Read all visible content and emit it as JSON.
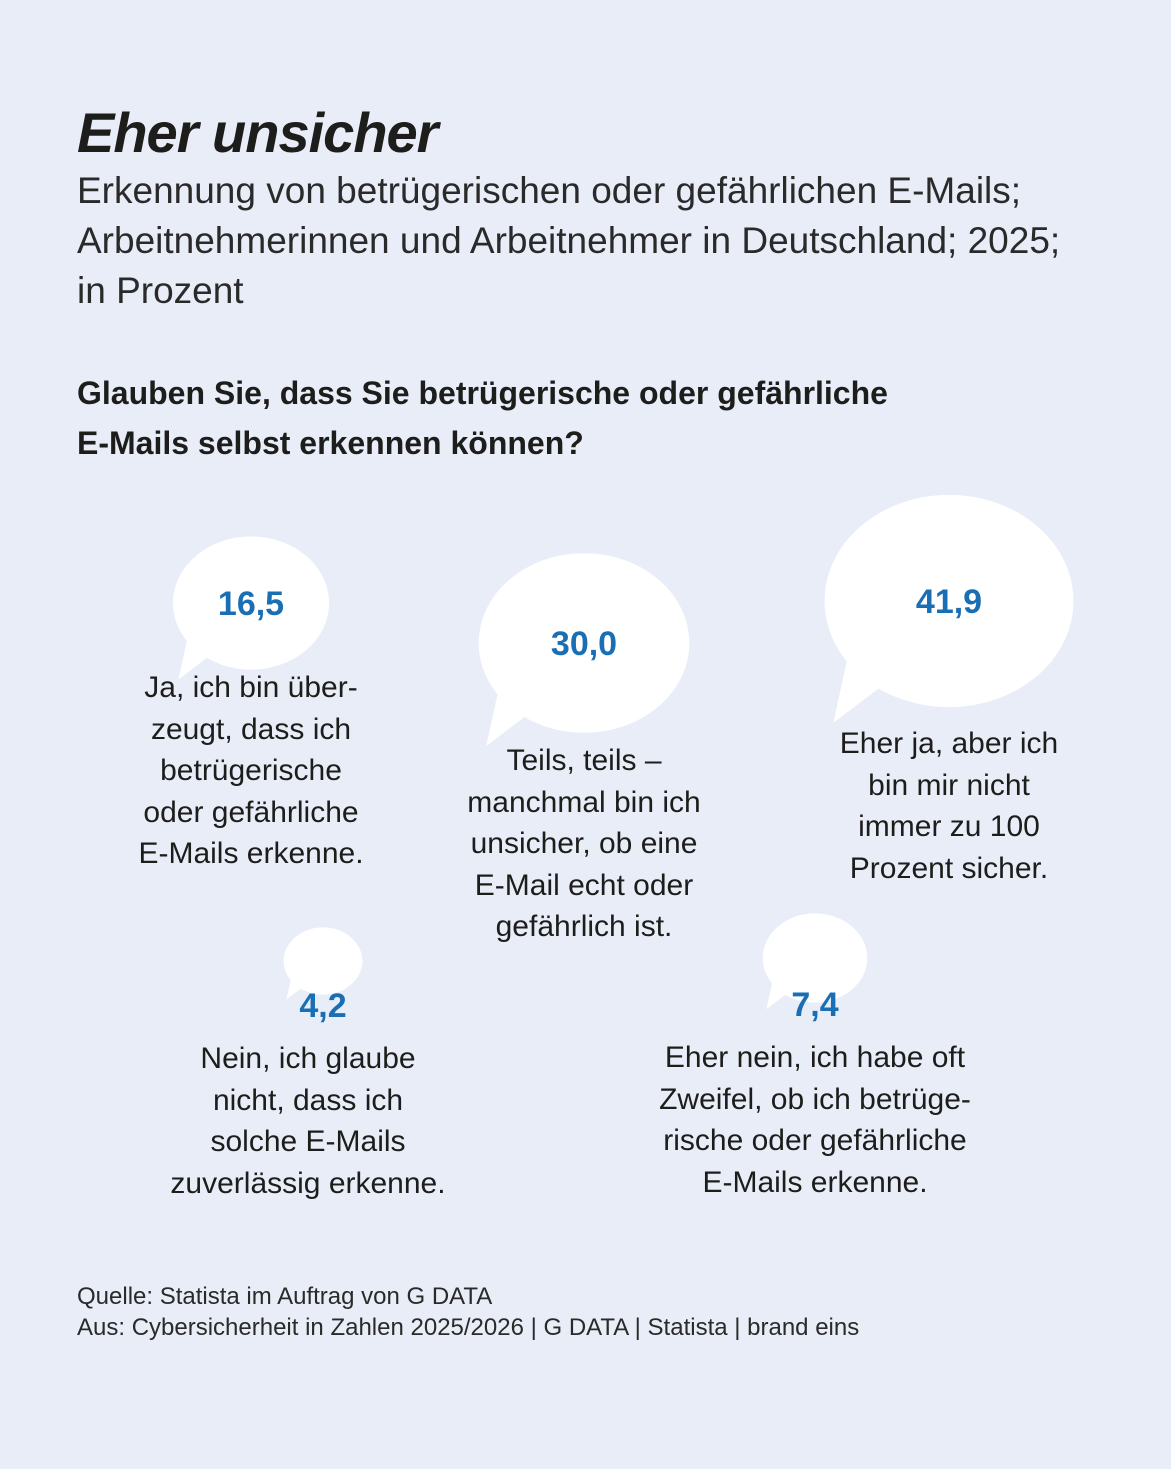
{
  "header": {
    "title": "Eher unsicher",
    "subtitle": "Erkennung von betrügerischen oder gefährlichen E-Mails; Arbeitnehmerinnen und Arbeitnehmer in Deutschland; 2025; in Prozent"
  },
  "question": {
    "line1": "Glauben Sie, dass Sie betrügerische oder gefährliche",
    "line2": "E-Mails selbst erkennen können?"
  },
  "chart_data": {
    "type": "bubble",
    "title": "Eher unsicher",
    "unit": "Prozent",
    "categories": [
      "Ja, ich bin überzeugt, dass ich betrügerische oder gefährliche E-Mails erkenne.",
      "Teils, teils – manchmal bin ich unsicher, ob eine E-Mail echt oder gefährlich ist.",
      "Eher ja, aber ich bin mir nicht immer zu 100 Prozent sicher.",
      "Nein, ich glaube nicht, dass ich solche E-Mails zuverlässig erkenne.",
      "Eher nein, ich habe oft Zweifel, ob ich betrügerische oder gefährliche E-Mails erkenne."
    ],
    "values": [
      16.5,
      30.0,
      41.9,
      4.2,
      7.4
    ],
    "value_labels": [
      "16,5",
      "30,0",
      "41,9",
      "4,2",
      "7,4"
    ],
    "label_lines": [
      [
        "Ja, ich bin über-",
        "zeugt, dass ich",
        "betrügerische",
        "oder gefährliche",
        "E-Mails erkenne."
      ],
      [
        "Teils, teils –",
        "manchmal bin ich",
        "unsicher, ob eine",
        "E-Mail echt oder",
        "gefährlich ist."
      ],
      [
        "Eher ja, aber ich",
        "bin mir nicht",
        "immer zu 100",
        "Prozent sicher."
      ],
      [
        "Nein, ich glaube",
        "nicht, dass ich",
        "solche E-Mails",
        "zuverlässig erkenne."
      ],
      [
        "Eher nein, ich habe oft",
        "Zweifel, ob ich betrüge-",
        "rische oder gefährliche",
        "E-Mails erkenne."
      ]
    ],
    "colors": {
      "background": "#e8edf8",
      "bubble": "#ffffff",
      "value_text": "#1a6eb3"
    }
  },
  "source": {
    "line1": "Quelle: Statista im Auftrag von G DATA",
    "line2": "Aus: Cybersicherheit in Zahlen 2025/2026 | G DATA | Statista | brand eins"
  }
}
